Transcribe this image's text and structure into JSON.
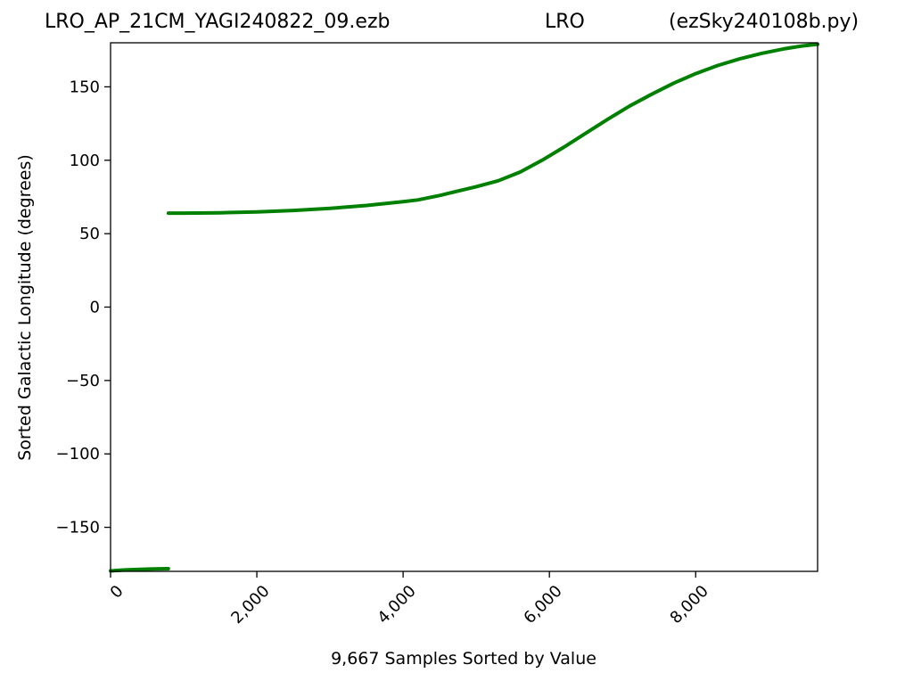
{
  "header": {
    "title_left": "LRO_AP_21CM_YAGI240822_09.ezb",
    "title_center": "LRO",
    "title_right": "(ezSky240108b.py)"
  },
  "chart_data": {
    "type": "line",
    "xlabel": "9,667 Samples Sorted by Value",
    "ylabel": "Sorted Galactic Longitude (degrees)",
    "xlim": [
      0,
      9667
    ],
    "ylim": [
      -180,
      180
    ],
    "x_ticks": [
      0,
      2000,
      4000,
      6000,
      8000
    ],
    "x_tick_labels": [
      "0",
      "2,000",
      "4,000",
      "6,000",
      "8,000"
    ],
    "y_ticks": [
      -150,
      -100,
      -50,
      0,
      50,
      100,
      150
    ],
    "y_tick_labels": [
      "−150",
      "−100",
      "−50",
      "0",
      "50",
      "100",
      "150"
    ],
    "grid": false,
    "line_color": "#008000",
    "series": [
      {
        "points": [
          [
            0,
            -179.7
          ],
          [
            200,
            -179.0
          ],
          [
            400,
            -178.6
          ],
          [
            600,
            -178.3
          ],
          [
            790,
            -178.2
          ],
          [
            791,
            64.0
          ],
          [
            1000,
            64.0
          ],
          [
            1500,
            64.2
          ],
          [
            2000,
            64.8
          ],
          [
            2500,
            65.8
          ],
          [
            3000,
            67.2
          ],
          [
            3500,
            69.2
          ],
          [
            4000,
            71.8
          ],
          [
            4200,
            73.0
          ],
          [
            4500,
            76.0
          ],
          [
            5000,
            82.0
          ],
          [
            5300,
            86.0
          ],
          [
            5600,
            92.0
          ],
          [
            5900,
            100.0
          ],
          [
            6200,
            109.0
          ],
          [
            6500,
            118.5
          ],
          [
            6800,
            128.0
          ],
          [
            7100,
            137.0
          ],
          [
            7400,
            145.0
          ],
          [
            7700,
            152.5
          ],
          [
            8000,
            159.0
          ],
          [
            8300,
            164.5
          ],
          [
            8600,
            169.0
          ],
          [
            8900,
            172.8
          ],
          [
            9200,
            175.8
          ],
          [
            9450,
            177.8
          ],
          [
            9667,
            179.0
          ]
        ]
      }
    ]
  }
}
